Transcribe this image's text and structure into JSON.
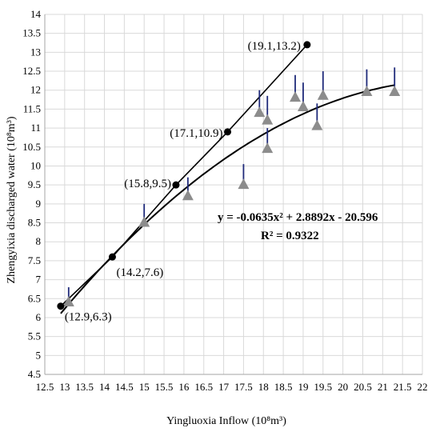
{
  "chart_data": {
    "type": "scatter",
    "xlabel": "Yingluoxia  Inflow (10⁸m³)",
    "ylabel": "Zhengyixia discharged water (10⁸m³)",
    "xlim": [
      12.5,
      22
    ],
    "ylim": [
      4.5,
      14
    ],
    "x_ticks": [
      "12.5",
      "13",
      "13.5",
      "14",
      "14.5",
      "15",
      "15.5",
      "16",
      "16.5",
      "17",
      "17.5",
      "18",
      "18.5",
      "19",
      "19.5",
      "20",
      "20.5",
      "21",
      "21.5",
      "22"
    ],
    "y_ticks": [
      "4.5",
      "5",
      "5.5",
      "6",
      "6.5",
      "7",
      "7.5",
      "8",
      "8.5",
      "9",
      "9.5",
      "10",
      "10.5",
      "11",
      "11.5",
      "12",
      "12.5",
      "13",
      "13.5",
      "14"
    ],
    "grid": true,
    "series": [
      {
        "marker": "circle",
        "color": "#000000",
        "connected": true,
        "points": [
          {
            "x": 12.9,
            "y": 6.3,
            "label": "(12.9,6.3)"
          },
          {
            "x": 14.2,
            "y": 7.6,
            "label": "(14.2,7.6)"
          },
          {
            "x": 15.8,
            "y": 9.5,
            "label": "(15.8,9.5)"
          },
          {
            "x": 17.1,
            "y": 10.9,
            "label": "(17.1,10.9)"
          },
          {
            "x": 19.1,
            "y": 13.2,
            "label": "(19.1,13.2)"
          }
        ]
      },
      {
        "marker": "triangle",
        "color": "#8c8c8c",
        "error_color": "#1f2a7a",
        "points": [
          {
            "x": 13.1,
            "y": 6.4,
            "err_top": 6.8
          },
          {
            "x": 15.0,
            "y": 8.5,
            "err_top": 9.0
          },
          {
            "x": 16.1,
            "y": 9.2,
            "err_top": 9.7
          },
          {
            "x": 17.5,
            "y": 9.5,
            "err_top": 10.05
          },
          {
            "x": 17.9,
            "y": 11.4,
            "err_top": 12.0
          },
          {
            "x": 18.1,
            "y": 11.2,
            "err_top": 11.85
          },
          {
            "x": 18.1,
            "y": 10.45,
            "err_top": 11.0
          },
          {
            "x": 18.8,
            "y": 11.8,
            "err_top": 12.4
          },
          {
            "x": 19.0,
            "y": 11.55,
            "err_top": 12.2
          },
          {
            "x": 19.35,
            "y": 11.05,
            "err_top": 11.65
          },
          {
            "x": 19.5,
            "y": 11.85,
            "err_top": 12.5
          },
          {
            "x": 20.6,
            "y": 11.95,
            "err_top": 12.55
          },
          {
            "x": 21.3,
            "y": 11.95,
            "err_top": 12.6
          }
        ]
      }
    ],
    "trendline": {
      "type": "polynomial",
      "coefficients": [
        -0.0635,
        2.8892,
        -20.596
      ],
      "x_range": [
        12.9,
        21.3
      ],
      "equation": "y = -0.0635x² + 2.8892x - 20.596",
      "r2": "R² = 0.9322"
    }
  }
}
